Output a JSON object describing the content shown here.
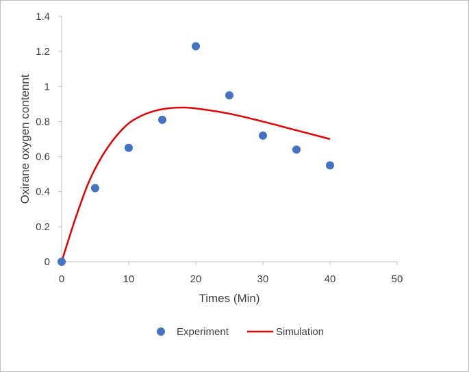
{
  "chart_data": {
    "type": "scatter",
    "title": "",
    "xlabel": "Times (Min)",
    "ylabel": "Oxirane oxygen contennt",
    "xlim": [
      0,
      50
    ],
    "ylim": [
      0,
      1.4
    ],
    "xticks": [
      "0",
      "10",
      "20",
      "30",
      "40",
      "50"
    ],
    "yticks": [
      "0",
      "0.2",
      "0.4",
      "0.6",
      "0.8",
      "1",
      "1.2",
      "1.4"
    ],
    "grid": false,
    "legend_position": "bottom",
    "series": [
      {
        "name": "Experiment",
        "kind": "markers",
        "color": "#4472C4",
        "x": [
          0,
          5,
          10,
          15,
          20,
          25,
          30,
          35,
          40
        ],
        "y": [
          0.0,
          0.42,
          0.65,
          0.81,
          1.23,
          0.95,
          0.72,
          0.64,
          0.55
        ]
      },
      {
        "name": "Simulation",
        "kind": "line",
        "color": "#E00000",
        "x": [
          0,
          2,
          4,
          6,
          8,
          10,
          12,
          14,
          16,
          18,
          20,
          25,
          30,
          35,
          40
        ],
        "y": [
          0.0,
          0.24,
          0.45,
          0.6,
          0.71,
          0.79,
          0.835,
          0.862,
          0.876,
          0.88,
          0.875,
          0.845,
          0.8,
          0.75,
          0.7
        ]
      }
    ]
  }
}
